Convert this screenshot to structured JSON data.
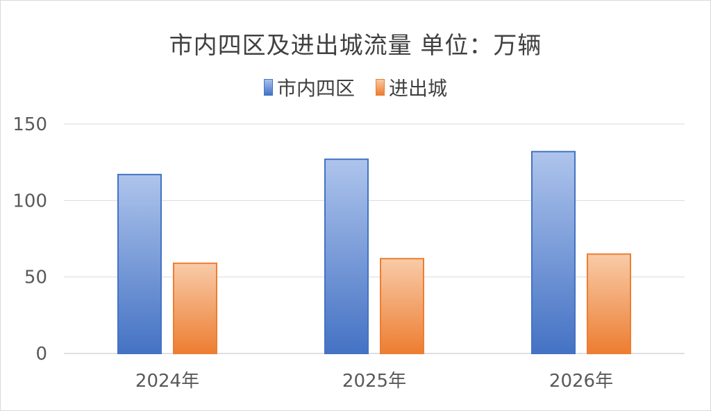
{
  "chart_data": {
    "type": "bar",
    "title": "市内四区及进出城流量  单位：万辆",
    "categories": [
      "2024年",
      "2025年",
      "2026年"
    ],
    "series": [
      {
        "name": "市内四区",
        "values": [
          117,
          127,
          132
        ],
        "color": "#4472c4"
      },
      {
        "name": "进出城",
        "values": [
          59,
          62,
          65
        ],
        "color": "#ed7d31"
      }
    ],
    "yticks": [
      "0",
      "50",
      "100",
      "150"
    ],
    "ylim": [
      0,
      150
    ],
    "grid": true,
    "legend_position": "top"
  }
}
